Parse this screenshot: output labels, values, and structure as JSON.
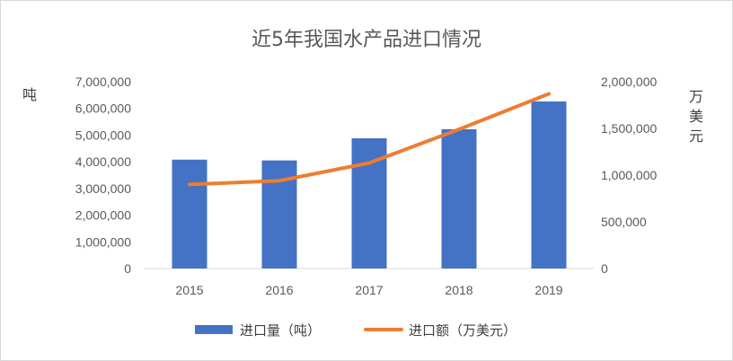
{
  "chart_data": {
    "type": "bar",
    "title": "近5年我国水产品进口情况",
    "categories": [
      "2015",
      "2016",
      "2017",
      "2018",
      "2019"
    ],
    "series": [
      {
        "name": "进口量（吨）",
        "type": "bar",
        "axis": "left",
        "color": "#4472C4",
        "values": [
          4080000,
          4050000,
          4880000,
          5220000,
          6260000
        ]
      },
      {
        "name": "进口额（万美元）",
        "type": "line",
        "axis": "right",
        "color": "#ED7D31",
        "values": [
          900000,
          940000,
          1130000,
          1490000,
          1870000
        ]
      }
    ],
    "y_left": {
      "label": "吨",
      "ylim": [
        0,
        7000000
      ],
      "ticks": [
        "0",
        "1,000,000",
        "2,000,000",
        "3,000,000",
        "4,000,000",
        "5,000,000",
        "6,000,000",
        "7,000,000"
      ]
    },
    "y_right": {
      "label": "万美元",
      "ylim": [
        0,
        2000000
      ],
      "ticks": [
        "0",
        "500,000",
        "1,000,000",
        "1,500,000",
        "2,000,000"
      ]
    },
    "grid": false,
    "legend_position": "bottom"
  }
}
